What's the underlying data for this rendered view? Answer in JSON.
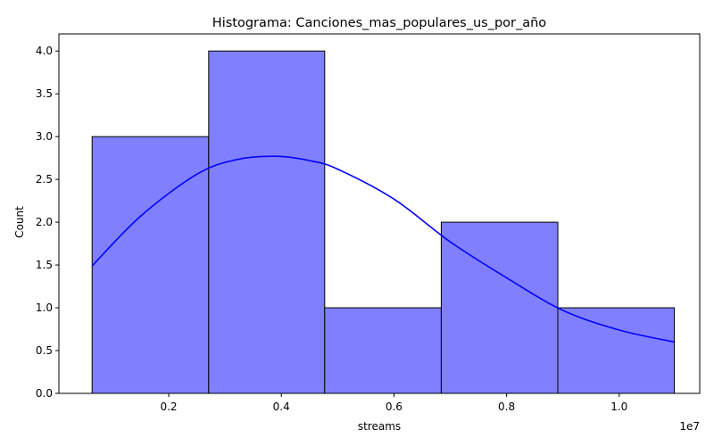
{
  "chart_data": {
    "type": "histogram",
    "title": "Histograma: Canciones_mas_populares_us_por_año",
    "xlabel": "streams",
    "ylabel": "Count",
    "x_scale_label": "1e7",
    "xlim": [
      50000,
      11430000
    ],
    "ylim": [
      0,
      4.2
    ],
    "xticks": [
      0.2,
      0.4,
      0.6,
      0.8,
      1.0
    ],
    "yticks": [
      0.0,
      0.5,
      1.0,
      1.5,
      2.0,
      2.5,
      3.0,
      3.5,
      4.0
    ],
    "bins": [
      {
        "x0": 640000,
        "x1": 2710000,
        "count": 3
      },
      {
        "x0": 2710000,
        "x1": 4770000,
        "count": 4
      },
      {
        "x0": 4770000,
        "x1": 6840000,
        "count": 1
      },
      {
        "x0": 6840000,
        "x1": 8910000,
        "count": 2
      },
      {
        "x0": 8910000,
        "x1": 10980000,
        "count": 1
      }
    ],
    "bar_color": "#8080ff",
    "kde": {
      "color": "#0000ff",
      "x": [
        640000,
        1500000,
        2500000,
        3200000,
        3900000,
        4500000,
        5000000,
        6000000,
        7000000,
        8000000,
        9000000,
        10000000,
        10980000
      ],
      "y": [
        1.49,
        2.07,
        2.56,
        2.73,
        2.77,
        2.72,
        2.62,
        2.27,
        1.77,
        1.35,
        0.97,
        0.74,
        0.6
      ]
    },
    "grid": false,
    "legend": "none"
  }
}
